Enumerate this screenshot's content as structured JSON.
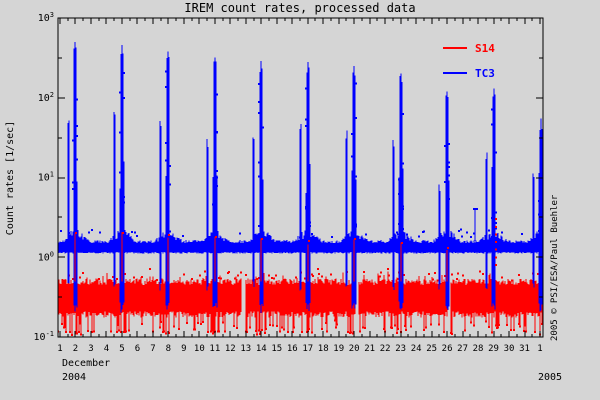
{
  "window": {
    "background_color": "#d5d5d5",
    "frame_color": "#000000"
  },
  "title": "IREM count rates, processed data",
  "y_axis": {
    "label": "Count rates [1/sec]",
    "scale": "log10",
    "tick_exponents": [
      3,
      2,
      1,
      0,
      -1
    ],
    "range": [
      0.1,
      1000
    ]
  },
  "x_axis": {
    "day_tick_labels": [
      "1",
      "2",
      "3",
      "4",
      "5",
      "6",
      "7",
      "8",
      "9",
      "10",
      "11",
      "12",
      "13",
      "14",
      "15",
      "16",
      "17",
      "18",
      "19",
      "20",
      "21",
      "22",
      "23",
      "24",
      "25",
      "26",
      "27",
      "28",
      "29",
      "30",
      "31",
      "1"
    ],
    "month_label": "December",
    "year_left": "2004",
    "year_right": "2005",
    "range_days": [
      1,
      32
    ],
    "minor_tick_step_days": 0.5
  },
  "legend": {
    "position": "top-right",
    "entries": [
      {
        "label": "S14",
        "color": "#ff0000"
      },
      {
        "label": "TC3",
        "color": "#0000ff"
      }
    ]
  },
  "watermark": "2005 © PSI/ESA/Paul Buehler",
  "chart_data": {
    "type": "line",
    "title": "IREM count rates, processed data",
    "xlabel": "December 2004",
    "ylabel": "Count rates [1/sec]",
    "x_range_days": [
      1,
      32
    ],
    "y_log_range": [
      -1,
      3
    ],
    "legend_position": "top-right",
    "grid": false,
    "series": [
      {
        "name": "S14",
        "color": "#ff0000",
        "baseline_band": [
          0.18,
          0.52
        ],
        "dropout_depths": [
          0.105,
          0.16
        ],
        "dropout_probability": 0.16,
        "data_gap_days": [
          12.85,
          20.2,
          26.12
        ],
        "perigee_spikes": {
          "days": [
            2,
            5,
            8,
            11,
            14,
            17,
            20,
            23,
            26,
            29
          ],
          "peaks": [
            2.0,
            2.0,
            1.9,
            1.8,
            1.7,
            1.6,
            1.7,
            1.5,
            1.3,
            3.0
          ]
        }
      },
      {
        "name": "TC3",
        "color": "#0000ff",
        "baseline_band": [
          1.12,
          1.65
        ],
        "perigee_spikes": {
          "days": [
            2,
            5,
            8,
            11,
            14,
            17,
            20,
            23,
            26,
            29,
            32.05
          ],
          "peaks": [
            500,
            460,
            380,
            320,
            290,
            280,
            250,
            200,
            120,
            130,
            55
          ],
          "shoulder_peaks": [
            55,
            70,
            55,
            30,
            38,
            45,
            40,
            30,
            8,
            20,
            12
          ],
          "shoulder_lead_days": 0.45
        },
        "isolated_spike": {
          "day": 27.82,
          "peak": 4.0
        }
      }
    ]
  }
}
